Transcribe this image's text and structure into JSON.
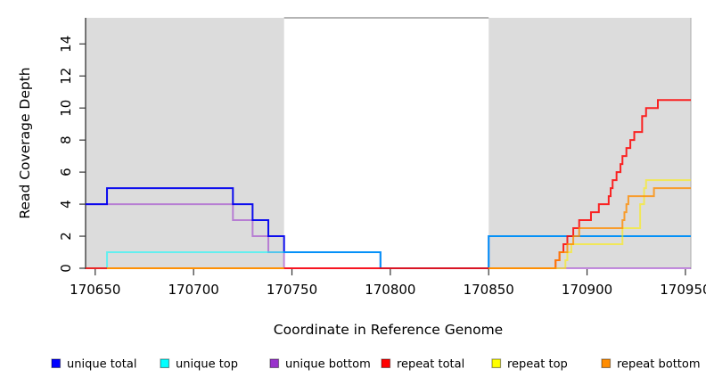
{
  "figure": {
    "background": "#ffffff",
    "plot_background": "#ffffff"
  },
  "chart_data": {
    "type": "line",
    "subtype": "step-coverage",
    "title": "",
    "xlabel": "Coordinate in Reference Genome",
    "ylabel": "Read Coverage Depth",
    "xlim": [
      170645,
      170953
    ],
    "ylim": [
      0,
      15.6
    ],
    "x_ticks": [
      170650,
      170700,
      170750,
      170800,
      170850,
      170900,
      170950
    ],
    "y_ticks": [
      0,
      2,
      4,
      6,
      8,
      10,
      12,
      14
    ],
    "grid": false,
    "legend_position": "bottom",
    "repeat_regions": [
      [
        170645,
        170746
      ],
      [
        170850,
        170953
      ]
    ],
    "region_fill": "#dcdcdc",
    "box_color": "#888888",
    "axis_color": "#333333",
    "draw_order": [
      "unique bottom",
      "unique total",
      "unique top",
      "repeat total",
      "repeat top",
      "repeat bottom"
    ],
    "series": [
      {
        "name": "unique total",
        "legend_color": "#0000ff",
        "line_color": "#0000ee",
        "line_opacity": 0.95,
        "clip_to_regions": false,
        "steps": [
          [
            170645,
            4
          ],
          [
            170656,
            5
          ],
          [
            170720,
            4
          ],
          [
            170730,
            3
          ],
          [
            170738,
            2
          ],
          [
            170746,
            1
          ],
          [
            170795,
            0
          ],
          [
            170850,
            2
          ]
        ]
      },
      {
        "name": "unique top",
        "legend_color": "#00ffff",
        "line_color": "#00ffff",
        "line_opacity": 0.55,
        "clip_to_regions": false,
        "steps": [
          [
            170645,
            0
          ],
          [
            170656,
            1
          ],
          [
            170795,
            0
          ],
          [
            170850,
            2
          ]
        ]
      },
      {
        "name": "unique bottom",
        "legend_color": "#9932cc",
        "line_color": "#9932cc",
        "line_opacity": 0.55,
        "clip_to_regions": false,
        "steps": [
          [
            170645,
            4
          ],
          [
            170720,
            3
          ],
          [
            170730,
            2
          ],
          [
            170738,
            1
          ],
          [
            170746,
            0
          ]
        ]
      },
      {
        "name": "repeat total",
        "legend_color": "#ff0000",
        "line_color": "#ff0000",
        "line_opacity": 0.85,
        "clip_to_regions": false,
        "steps": [
          [
            170645,
            0
          ],
          [
            170884,
            0.5
          ],
          [
            170886,
            1
          ],
          [
            170888,
            1.5
          ],
          [
            170890,
            2
          ],
          [
            170893,
            2.5
          ],
          [
            170896,
            3
          ],
          [
            170902,
            3.5
          ],
          [
            170906,
            4
          ],
          [
            170911,
            4.5
          ],
          [
            170912,
            5
          ],
          [
            170913,
            5.5
          ],
          [
            170915,
            6
          ],
          [
            170917,
            6.5
          ],
          [
            170918,
            7
          ],
          [
            170920,
            7.5
          ],
          [
            170922,
            8
          ],
          [
            170924,
            8.5
          ],
          [
            170928,
            9.5
          ],
          [
            170930,
            10
          ],
          [
            170936,
            10.5
          ]
        ]
      },
      {
        "name": "repeat top",
        "legend_color": "#ffff00",
        "line_color": "#ffee00",
        "line_opacity": 0.6,
        "clip_to_regions": true,
        "steps": [
          [
            170656,
            0
          ],
          [
            170889,
            0.5
          ],
          [
            170890,
            1
          ],
          [
            170892,
            1.5
          ],
          [
            170918,
            2.5
          ],
          [
            170927,
            4
          ],
          [
            170929,
            5
          ],
          [
            170930,
            5.5
          ]
        ]
      },
      {
        "name": "repeat bottom",
        "legend_color": "#ff8c00",
        "line_color": "#ff8c00",
        "line_opacity": 0.8,
        "clip_to_regions": true,
        "steps": [
          [
            170656,
            0
          ],
          [
            170884,
            0.5
          ],
          [
            170886,
            1
          ],
          [
            170890,
            1.5
          ],
          [
            170893,
            2
          ],
          [
            170896,
            2.5
          ],
          [
            170918,
            3
          ],
          [
            170919,
            3.5
          ],
          [
            170920,
            4
          ],
          [
            170921,
            4.5
          ],
          [
            170934,
            5
          ]
        ]
      }
    ]
  }
}
